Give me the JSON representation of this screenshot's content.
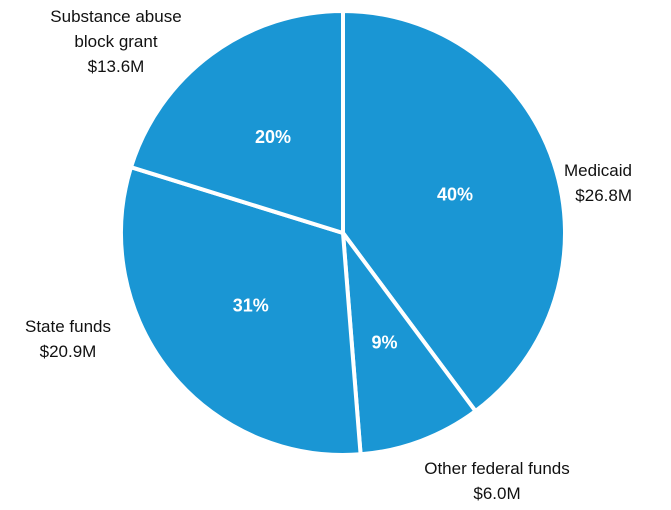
{
  "chart_data": {
    "type": "pie",
    "slices": [
      {
        "name": "Medicaid",
        "amount": "$26.8M",
        "value": 26.8,
        "percent_label": "40%"
      },
      {
        "name": "Other federal funds",
        "amount": "$6.0M",
        "value": 6.0,
        "percent_label": "9%"
      },
      {
        "name": "State funds",
        "amount": "$20.9M",
        "value": 20.9,
        "percent_label": "31%"
      },
      {
        "name": "Substance abuse block grant",
        "amount": "$13.6M",
        "value": 13.6,
        "percent_label": "20%"
      }
    ],
    "start_angle": "12 o'clock",
    "direction": "clockwise",
    "slice_color": "#1a96d4",
    "separator_color": "#ffffff",
    "legend": "none"
  }
}
